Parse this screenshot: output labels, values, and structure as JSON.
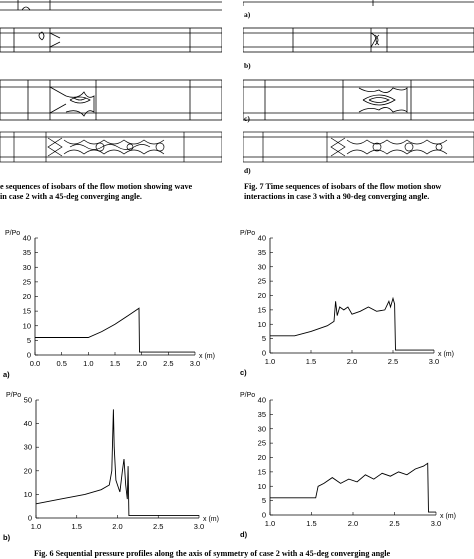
{
  "top_left": {
    "caption_line1": "e sequences of isobars of the flow motion showing wave",
    "caption_line2": "in case 2 with a 45-deg converging angle."
  },
  "top_right": {
    "labels": [
      "a)",
      "b)",
      "c)",
      "d)"
    ],
    "caption_line1": "Fig. 7    Time sequences of isobars of the flow motion show",
    "caption_line2": "interactions in case 3 with a 90-deg converging angle."
  },
  "bottom_caption": "Fig. 6    Sequential pressure profiles along the axis of symmetry of case 2 with a 45-deg converging angle",
  "chart_data": [
    {
      "type": "line",
      "panel": "a)",
      "ylabel": "P/Po",
      "xlabel": "x (m)",
      "xlim": [
        0.0,
        3.0
      ],
      "ylim": [
        0,
        40
      ],
      "xticks": [
        "0.0",
        "0.5",
        "1.0",
        "1.5",
        "2.0",
        "2.5",
        "3.0"
      ],
      "yticks": [
        "0",
        "5",
        "10",
        "15",
        "20",
        "25",
        "30",
        "35",
        "40"
      ],
      "x": [
        0.0,
        1.0,
        1.25,
        1.5,
        1.75,
        1.95,
        1.96,
        2.0,
        2.5,
        3.0
      ],
      "y": [
        6,
        6,
        8,
        10.5,
        13.5,
        16,
        1,
        1,
        1,
        1
      ]
    },
    {
      "type": "line",
      "panel": "c)",
      "ylabel": "P/Po",
      "xlabel": "x (m)",
      "xlim": [
        1.0,
        3.0
      ],
      "ylim": [
        0,
        40
      ],
      "xticks": [
        "1.0",
        "1.5",
        "2.0",
        "2.5",
        "3.0"
      ],
      "yticks": [
        "0",
        "5",
        "10",
        "15",
        "20",
        "25",
        "30",
        "35",
        "40"
      ],
      "x": [
        1.0,
        1.3,
        1.5,
        1.7,
        1.78,
        1.8,
        1.82,
        1.85,
        1.9,
        1.95,
        2.0,
        2.1,
        2.2,
        2.3,
        2.4,
        2.45,
        2.47,
        2.5,
        2.52,
        2.53,
        2.7,
        3.0
      ],
      "y": [
        6,
        6,
        7.5,
        9.5,
        11,
        18,
        13,
        16,
        15,
        16,
        13.5,
        14.5,
        16,
        14.5,
        15,
        18,
        16,
        19,
        17,
        1,
        1,
        1
      ]
    },
    {
      "type": "line",
      "panel": "b)",
      "ylabel": "P/Po",
      "xlabel": "x (m)",
      "xlim": [
        1.0,
        3.0
      ],
      "ylim": [
        0,
        50
      ],
      "xticks": [
        "1.0",
        "1.5",
        "2.0",
        "2.5",
        "3.0"
      ],
      "yticks": [
        "0",
        "10",
        "20",
        "30",
        "40",
        "50"
      ],
      "x": [
        1.0,
        1.3,
        1.6,
        1.8,
        1.9,
        1.93,
        1.95,
        1.96,
        1.98,
        2.0,
        2.03,
        2.06,
        2.08,
        2.1,
        2.12,
        2.13,
        2.14,
        2.16,
        2.4,
        3.0
      ],
      "y": [
        6,
        8,
        10,
        12,
        14,
        20,
        46,
        30,
        16,
        14,
        11,
        20,
        25,
        14,
        8,
        22,
        1,
        1,
        1,
        1
      ]
    },
    {
      "type": "line",
      "panel": "d)",
      "ylabel": "P/Po",
      "xlabel": "x (m)",
      "xlim": [
        1.0,
        3.0
      ],
      "ylim": [
        0,
        40
      ],
      "xticks": [
        "1.0",
        "1.5",
        "2.0",
        "2.5",
        "3.0"
      ],
      "yticks": [
        "0",
        "5",
        "10",
        "15",
        "20",
        "25",
        "30",
        "35",
        "40"
      ],
      "x": [
        1.0,
        1.55,
        1.58,
        1.65,
        1.75,
        1.85,
        1.95,
        2.05,
        2.15,
        2.25,
        2.35,
        2.45,
        2.55,
        2.65,
        2.75,
        2.85,
        2.9,
        2.91,
        3.0
      ],
      "y": [
        6,
        6,
        10,
        11,
        13,
        11,
        12.5,
        11.5,
        14,
        12.5,
        14.5,
        13.5,
        15,
        14,
        16,
        17,
        18,
        1,
        1
      ]
    }
  ]
}
